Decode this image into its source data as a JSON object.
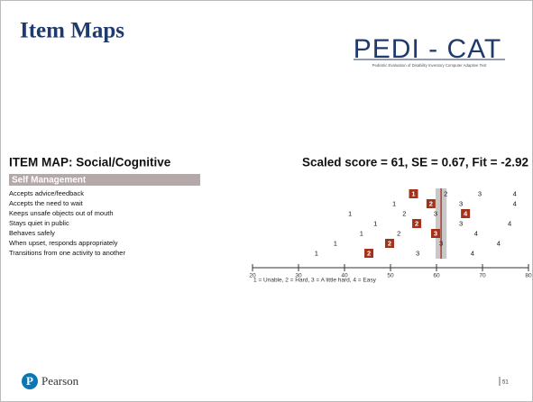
{
  "header": {
    "title": "Item Maps"
  },
  "logo": {
    "name": "PEDI - CAT",
    "subtitle": "Pediatric Evaluation of Disability Inventory Computer Adaptive Test"
  },
  "item_map": {
    "title": "ITEM MAP: Social/Cognitive",
    "score_text": "Scaled score = 61, SE = 0.67, Fit = -2.92",
    "score": 61,
    "se_band": [
      59.8,
      62.2
    ],
    "section": "Self Management",
    "xlim": [
      20,
      80
    ],
    "xticks": [
      20,
      30,
      40,
      50,
      60,
      70,
      80
    ],
    "legend": "1 = Unable, 2 = Hard, 3 = A little hard, 4 = Easy",
    "items": [
      {
        "label": "Accepts advice/feedback",
        "points": [
          {
            "label": "1",
            "x": 55,
            "selected": true
          },
          {
            "label": "2",
            "x": 62
          },
          {
            "label": "3",
            "x": 69.4
          },
          {
            "label": "4",
            "x": 77
          }
        ]
      },
      {
        "label": "Accepts the need to wait",
        "points": [
          {
            "label": "1",
            "x": 50.8
          },
          {
            "label": "2",
            "x": 58.8,
            "selected": true
          },
          {
            "label": "3",
            "x": 65.3
          },
          {
            "label": "4",
            "x": 77
          }
        ]
      },
      {
        "label": "Keeps unsafe objects out of mouth",
        "points": [
          {
            "label": "1",
            "x": 41.2
          },
          {
            "label": "2",
            "x": 53
          },
          {
            "label": "3",
            "x": 59.8
          },
          {
            "label": "4",
            "x": 66.3,
            "selected": true
          }
        ]
      },
      {
        "label": "Stays quiet in public",
        "points": [
          {
            "label": "1",
            "x": 46.7
          },
          {
            "label": "2",
            "x": 55.7,
            "selected": true
          },
          {
            "label": "3",
            "x": 65.3
          },
          {
            "label": "4",
            "x": 75.9
          }
        ]
      },
      {
        "label": "Behaves safely",
        "points": [
          {
            "label": "1",
            "x": 43.7
          },
          {
            "label": "2",
            "x": 51.8
          },
          {
            "label": "3",
            "x": 59.8,
            "selected": true
          },
          {
            "label": "4",
            "x": 68.6
          }
        ]
      },
      {
        "label": "When upset, responds appropriately",
        "points": [
          {
            "label": "1",
            "x": 38
          },
          {
            "label": "2",
            "x": 49.8,
            "selected": true
          },
          {
            "label": "3",
            "x": 61
          },
          {
            "label": "4",
            "x": 73.5
          }
        ]
      },
      {
        "label": "Transitions from one activity to another",
        "points": [
          {
            "label": "1",
            "x": 33.9
          },
          {
            "label": "2",
            "x": 45.3,
            "selected": true
          },
          {
            "label": "3",
            "x": 55.9
          },
          {
            "label": "4",
            "x": 67.8
          }
        ]
      }
    ]
  },
  "footer": {
    "brand": "Pearson",
    "page": "51"
  }
}
